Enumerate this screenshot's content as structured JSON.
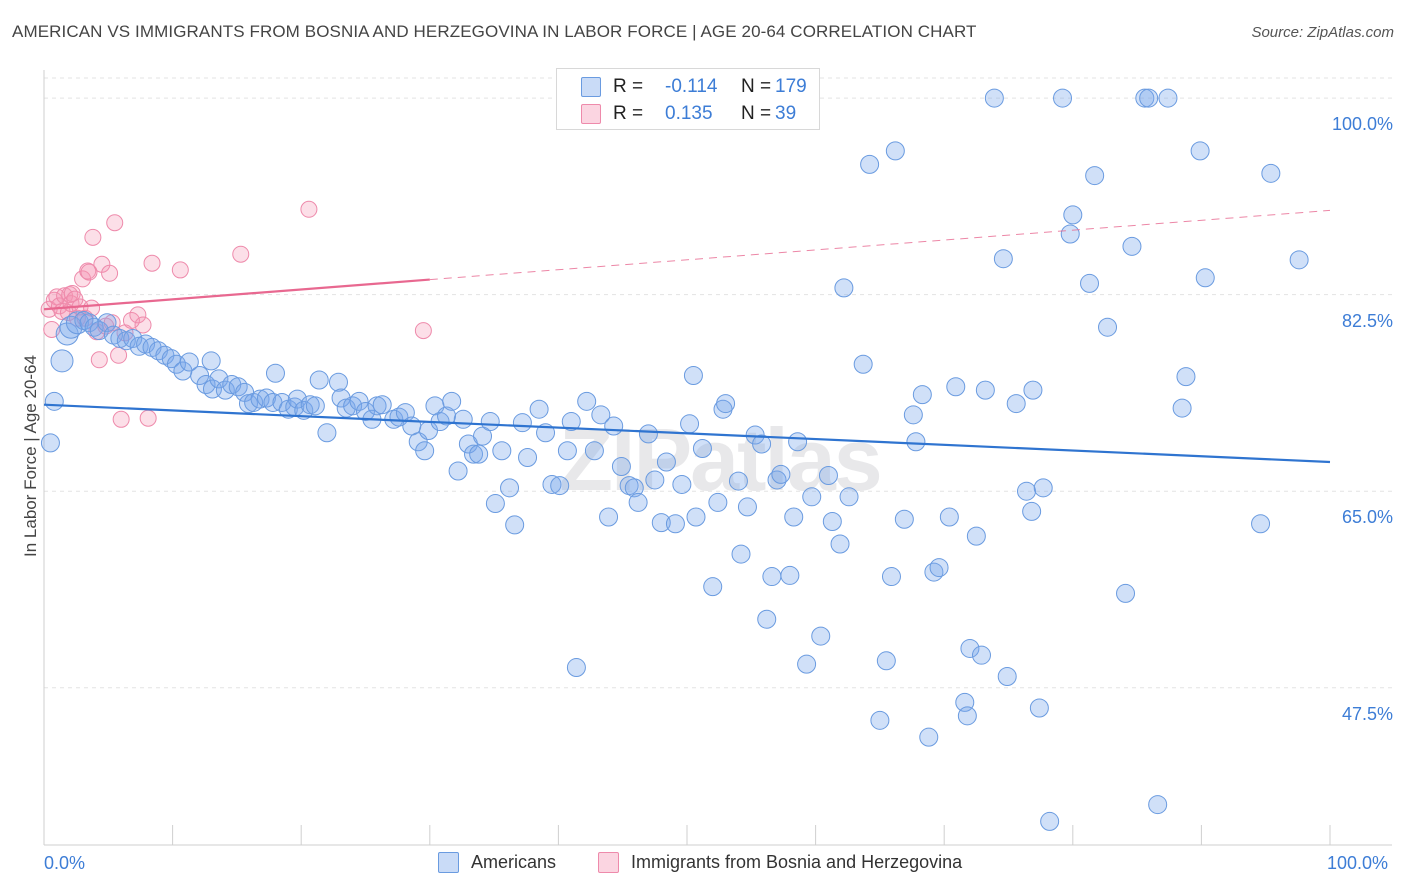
{
  "title": "AMERICAN VS IMMIGRANTS FROM BOSNIA AND HERZEGOVINA IN LABOR FORCE | AGE 20-64 CORRELATION CHART",
  "source": "Source: ZipAtlas.com",
  "watermark": "ZIPatlas",
  "colors": {
    "blue_fill": "rgba(120,165,235,0.35)",
    "blue_stroke": "#6a9be0",
    "blue_line": "#2f74d0",
    "pink_fill": "rgba(245,150,180,0.30)",
    "pink_stroke": "#ee8aab",
    "pink_line": "#e86890",
    "accent_text": "#3d7dd6"
  },
  "legend": {
    "row1": {
      "r_label": "R =",
      "r_value": "-0.114",
      "n_label": "N =",
      "n_value": "179"
    },
    "row2": {
      "r_label": "R =",
      "r_value": "0.135",
      "n_label": "N =",
      "n_value": "39"
    }
  },
  "bottom_legend": {
    "americans": "Americans",
    "immigrants": "Immigrants from Bosnia and Herzegovina"
  },
  "chart_data": {
    "type": "scatter",
    "ylabel": "In Labor Force | Age 20-64",
    "x_tick_labels": {
      "left": "0.0%",
      "right": "100.0%"
    },
    "y_tick_labels": [
      "100.0%",
      "82.5%",
      "65.0%",
      "47.5%"
    ],
    "y_ticks": [
      100,
      82.5,
      65,
      47.5
    ],
    "xlim": [
      0,
      100
    ],
    "ylim": [
      33.5,
      102.5
    ],
    "grid": "horizontal dashed",
    "series": [
      {
        "name": "Americans",
        "r": -0.114,
        "n": 179,
        "trend": {
          "x": [
            0,
            100
          ],
          "y": [
            72.7,
            67.6
          ],
          "dashed_extension": false
        },
        "points": [
          [
            0.5,
            69.3
          ],
          [
            0.8,
            73.0
          ],
          [
            1.4,
            76.6
          ],
          [
            1.8,
            79.0
          ],
          [
            2.1,
            79.6
          ],
          [
            2.6,
            80.0
          ],
          [
            3.1,
            80.2
          ],
          [
            3.5,
            80.0
          ],
          [
            3.9,
            79.6
          ],
          [
            4.3,
            79.3
          ],
          [
            4.9,
            80.0
          ],
          [
            5.4,
            78.9
          ],
          [
            5.9,
            78.6
          ],
          [
            6.4,
            78.4
          ],
          [
            6.9,
            78.6
          ],
          [
            7.4,
            77.9
          ],
          [
            7.9,
            78.1
          ],
          [
            8.4,
            77.8
          ],
          [
            8.9,
            77.5
          ],
          [
            9.4,
            77.1
          ],
          [
            9.9,
            76.8
          ],
          [
            10.3,
            76.3
          ],
          [
            10.8,
            75.7
          ],
          [
            11.3,
            76.5
          ],
          [
            12.1,
            75.3
          ],
          [
            12.6,
            74.5
          ],
          [
            13.0,
            76.6
          ],
          [
            13.1,
            74.1
          ],
          [
            13.6,
            75.0
          ],
          [
            14.1,
            74.0
          ],
          [
            14.6,
            74.5
          ],
          [
            15.1,
            74.3
          ],
          [
            15.6,
            73.8
          ],
          [
            15.9,
            72.8
          ],
          [
            16.3,
            72.9
          ],
          [
            16.8,
            73.2
          ],
          [
            17.3,
            73.3
          ],
          [
            17.8,
            72.9
          ],
          [
            18.0,
            75.5
          ],
          [
            18.5,
            72.9
          ],
          [
            19.0,
            72.3
          ],
          [
            19.5,
            72.5
          ],
          [
            19.7,
            73.2
          ],
          [
            20.2,
            72.2
          ],
          [
            20.7,
            72.7
          ],
          [
            21.1,
            72.6
          ],
          [
            21.4,
            74.9
          ],
          [
            22.0,
            70.2
          ],
          [
            22.9,
            74.7
          ],
          [
            23.1,
            73.3
          ],
          [
            23.5,
            72.4
          ],
          [
            24.0,
            72.6
          ],
          [
            24.5,
            73.0
          ],
          [
            25.0,
            72.1
          ],
          [
            25.5,
            71.4
          ],
          [
            25.9,
            72.6
          ],
          [
            26.3,
            72.7
          ],
          [
            27.2,
            71.4
          ],
          [
            27.6,
            71.6
          ],
          [
            28.1,
            72.0
          ],
          [
            28.6,
            70.8
          ],
          [
            29.1,
            69.4
          ],
          [
            29.6,
            68.6
          ],
          [
            29.9,
            70.4
          ],
          [
            30.4,
            72.6
          ],
          [
            30.8,
            71.2
          ],
          [
            31.3,
            71.7
          ],
          [
            31.7,
            73.0
          ],
          [
            32.2,
            66.8
          ],
          [
            32.6,
            71.4
          ],
          [
            33.0,
            69.2
          ],
          [
            33.4,
            68.3
          ],
          [
            33.8,
            68.3
          ],
          [
            34.1,
            69.9
          ],
          [
            34.7,
            71.2
          ],
          [
            35.1,
            63.9
          ],
          [
            35.6,
            68.6
          ],
          [
            36.2,
            65.3
          ],
          [
            36.6,
            62.0
          ],
          [
            37.2,
            71.1
          ],
          [
            37.6,
            68.0
          ],
          [
            38.5,
            72.3
          ],
          [
            39.0,
            70.2
          ],
          [
            39.5,
            65.6
          ],
          [
            40.1,
            65.5
          ],
          [
            40.7,
            68.6
          ],
          [
            41.0,
            71.2
          ],
          [
            41.4,
            49.3
          ],
          [
            42.2,
            73.0
          ],
          [
            42.8,
            68.6
          ],
          [
            43.3,
            71.8
          ],
          [
            43.9,
            62.7
          ],
          [
            44.3,
            70.8
          ],
          [
            44.9,
            67.2
          ],
          [
            45.5,
            65.5
          ],
          [
            45.9,
            65.3
          ],
          [
            46.2,
            64.0
          ],
          [
            47.0,
            70.1
          ],
          [
            47.5,
            66.0
          ],
          [
            48.0,
            62.2
          ],
          [
            48.4,
            67.6
          ],
          [
            49.1,
            62.1
          ],
          [
            49.6,
            65.6
          ],
          [
            50.2,
            71.0
          ],
          [
            50.5,
            75.3
          ],
          [
            50.7,
            62.7
          ],
          [
            51.2,
            68.8
          ],
          [
            52.0,
            56.5
          ],
          [
            52.4,
            64.0
          ],
          [
            52.8,
            72.3
          ],
          [
            53.0,
            72.8
          ],
          [
            54.0,
            65.9
          ],
          [
            54.2,
            59.4
          ],
          [
            54.7,
            63.6
          ],
          [
            55.3,
            70.0
          ],
          [
            55.8,
            69.2
          ],
          [
            56.2,
            53.6
          ],
          [
            56.6,
            57.4
          ],
          [
            57.0,
            66.0
          ],
          [
            57.3,
            66.5
          ],
          [
            58.0,
            57.5
          ],
          [
            58.3,
            62.7
          ],
          [
            58.6,
            69.4
          ],
          [
            59.3,
            49.6
          ],
          [
            59.7,
            64.5
          ],
          [
            60.4,
            52.1
          ],
          [
            61.0,
            66.4
          ],
          [
            61.3,
            62.3
          ],
          [
            61.9,
            60.3
          ],
          [
            62.2,
            83.1
          ],
          [
            62.6,
            64.5
          ],
          [
            63.7,
            76.3
          ],
          [
            64.2,
            94.1
          ],
          [
            65.0,
            44.6
          ],
          [
            65.5,
            49.9
          ],
          [
            65.9,
            57.4
          ],
          [
            66.2,
            95.3
          ],
          [
            66.9,
            62.5
          ],
          [
            67.6,
            71.8
          ],
          [
            67.8,
            69.4
          ],
          [
            68.3,
            73.6
          ],
          [
            68.8,
            43.1
          ],
          [
            69.2,
            57.8
          ],
          [
            69.6,
            58.2
          ],
          [
            70.4,
            62.7
          ],
          [
            70.9,
            74.3
          ],
          [
            71.6,
            46.2
          ],
          [
            71.8,
            45.0
          ],
          [
            72.0,
            51.0
          ],
          [
            72.5,
            61.0
          ],
          [
            72.9,
            50.4
          ],
          [
            73.2,
            74.0
          ],
          [
            73.9,
            100.0
          ],
          [
            74.6,
            85.7
          ],
          [
            74.9,
            48.5
          ],
          [
            75.6,
            72.8
          ],
          [
            76.4,
            65.0
          ],
          [
            76.8,
            63.2
          ],
          [
            76.9,
            74.0
          ],
          [
            77.4,
            45.7
          ],
          [
            77.7,
            65.3
          ],
          [
            78.2,
            35.6
          ],
          [
            79.2,
            100.0
          ],
          [
            79.8,
            87.9
          ],
          [
            80.0,
            89.6
          ],
          [
            81.3,
            83.5
          ],
          [
            81.7,
            93.1
          ],
          [
            82.7,
            79.6
          ],
          [
            84.1,
            55.9
          ],
          [
            84.6,
            86.8
          ],
          [
            85.6,
            100.0
          ],
          [
            85.9,
            100.0
          ],
          [
            86.6,
            37.1
          ],
          [
            87.4,
            100.0
          ],
          [
            88.5,
            72.4
          ],
          [
            88.8,
            75.2
          ],
          [
            89.9,
            95.3
          ],
          [
            90.3,
            84.0
          ],
          [
            94.6,
            62.1
          ],
          [
            95.4,
            93.3
          ],
          [
            97.6,
            85.6
          ]
        ]
      },
      {
        "name": "Immigrants from Bosnia and Herzegovina",
        "r": 0.135,
        "n": 39,
        "trend": {
          "x": [
            0,
            100
          ],
          "y": [
            81.2,
            90.0
          ],
          "solid_until_x": 30
        },
        "points": [
          [
            0.4,
            81.2
          ],
          [
            0.6,
            79.4
          ],
          [
            0.8,
            82.0
          ],
          [
            1.0,
            82.3
          ],
          [
            1.2,
            81.5
          ],
          [
            1.4,
            81.0
          ],
          [
            1.6,
            82.4
          ],
          [
            1.9,
            80.9
          ],
          [
            2.0,
            82.5
          ],
          [
            2.1,
            81.7
          ],
          [
            2.2,
            82.6
          ],
          [
            2.4,
            82.1
          ],
          [
            2.6,
            80.4
          ],
          [
            2.8,
            81.4
          ],
          [
            3.0,
            83.9
          ],
          [
            3.2,
            80.4
          ],
          [
            3.4,
            84.6
          ],
          [
            3.5,
            84.5
          ],
          [
            3.7,
            81.3
          ],
          [
            3.8,
            87.6
          ],
          [
            4.1,
            79.2
          ],
          [
            4.3,
            76.7
          ],
          [
            4.5,
            85.2
          ],
          [
            4.8,
            79.7
          ],
          [
            5.1,
            84.4
          ],
          [
            5.3,
            80.0
          ],
          [
            5.5,
            88.9
          ],
          [
            5.8,
            77.1
          ],
          [
            6.0,
            71.4
          ],
          [
            6.3,
            79.1
          ],
          [
            6.8,
            80.2
          ],
          [
            7.3,
            80.7
          ],
          [
            7.7,
            79.8
          ],
          [
            8.1,
            71.5
          ],
          [
            8.4,
            85.3
          ],
          [
            10.6,
            84.7
          ],
          [
            15.3,
            86.1
          ],
          [
            20.6,
            90.1
          ],
          [
            29.5,
            79.3
          ]
        ]
      }
    ]
  }
}
